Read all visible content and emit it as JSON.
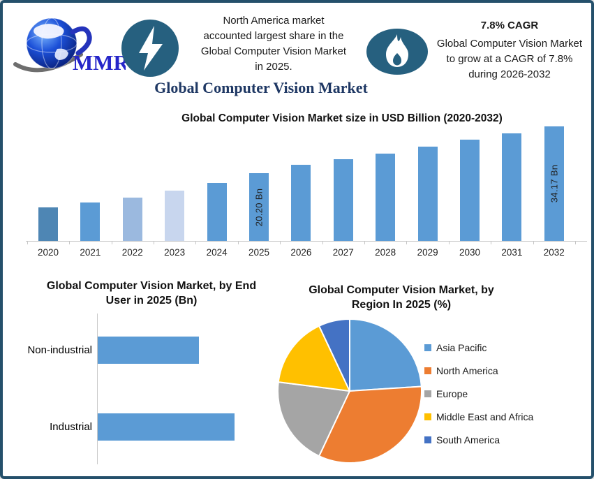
{
  "brand": {
    "logo_text": "MMR"
  },
  "header": {
    "callout": "North America market\naccounted largest share in the\nGlobal Computer Vision Market\nin 2025.",
    "cagr_title": "7.8% CAGR",
    "cagr_text": "Global Computer Vision Market\nto grow at a CAGR of 7.8%\nduring 2026-2032"
  },
  "main_title": "Global Computer Vision Market",
  "colors": {
    "accent_blue": "#5B9BD5",
    "icon_circle": "#26607F",
    "title_navy": "#1F3864",
    "frame_border": "#24506B"
  },
  "chart_data": [
    {
      "type": "bar",
      "title": "Global Computer Vision Market size in USD Billion (2020-2032)",
      "categories": [
        "2020",
        "2021",
        "2022",
        "2023",
        "2024",
        "2025",
        "2026",
        "2027",
        "2028",
        "2029",
        "2030",
        "2031",
        "2032"
      ],
      "values": [
        10.0,
        11.4,
        13.0,
        15.1,
        17.4,
        20.2,
        22.8,
        24.4,
        26.0,
        28.1,
        30.2,
        32.1,
        34.17
      ],
      "unit": "USD Billion",
      "ylim": [
        0,
        36
      ],
      "gridlines": false,
      "legend": false,
      "data_labels": {
        "2025": "20.20 Bn",
        "2032": "34.17 Bn"
      },
      "bar_colors": [
        "#4E86B4",
        "#5B9BD5",
        "#9BB9DF",
        "#C8D6EE",
        "#5B9BD5",
        "#5B9BD5",
        "#5B9BD5",
        "#5B9BD5",
        "#5B9BD5",
        "#5B9BD5",
        "#5B9BD5",
        "#5B9BD5",
        "#5B9BD5"
      ]
    },
    {
      "type": "bar",
      "orientation": "horizontal",
      "title": "Global Computer Vision Market, by End User in 2025 (Bn)",
      "categories": [
        "Non-industrial",
        "Industrial"
      ],
      "values": [
        8.6,
        11.6
      ],
      "bar_color": "#5B9BD5",
      "gridlines": false,
      "legend": false
    },
    {
      "type": "pie",
      "title": "Global Computer Vision Market, by Region In 2025 (%)",
      "labels": [
        "Asia Pacific",
        "North America",
        "Europe",
        "Middle East and Africa",
        "South America"
      ],
      "values": [
        24,
        33,
        20,
        16,
        7
      ],
      "colors": [
        "#5B9BD5",
        "#ED7D31",
        "#A5A5A5",
        "#FFC000",
        "#4472C4"
      ],
      "legend_position": "right",
      "start_angle_deg": 0,
      "direction": "clockwise"
    }
  ]
}
